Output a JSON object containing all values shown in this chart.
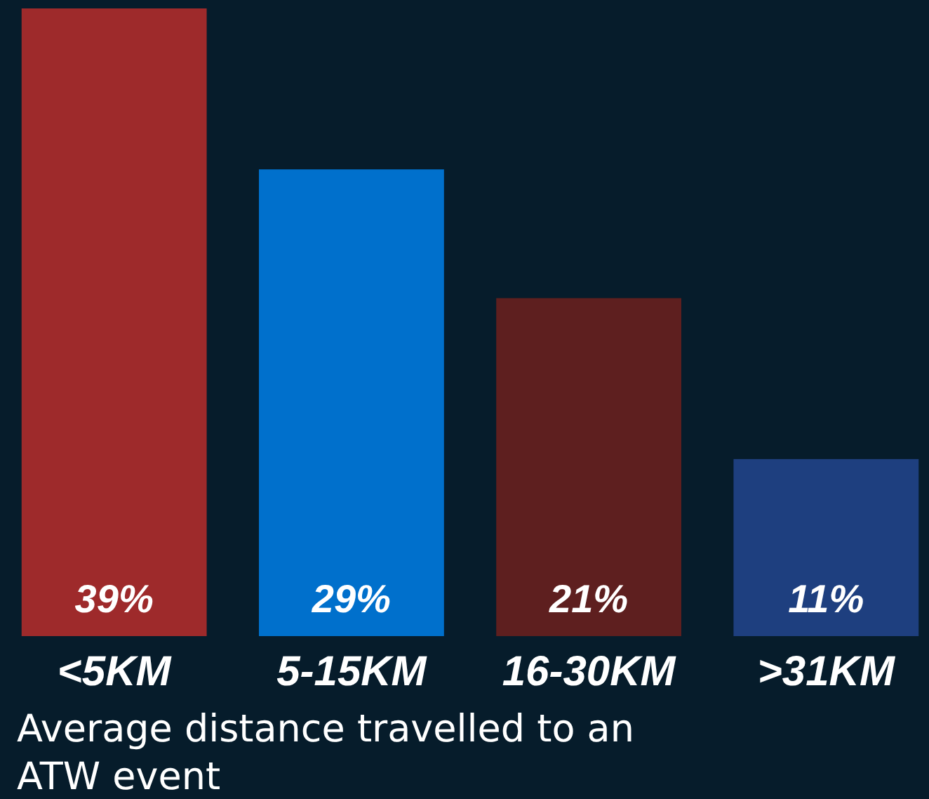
{
  "chart_data": {
    "type": "bar",
    "title": "Average distance travelled to an ATW event",
    "categories": [
      "<5KM",
      "5-15KM",
      "16-30KM",
      ">31KM"
    ],
    "values": [
      39,
      29,
      21,
      11
    ],
    "colors": [
      "#9e2a2b",
      "#0070cc",
      "#5e1f1f",
      "#1e3f7f"
    ],
    "value_labels": [
      "39%",
      "29%",
      "21%",
      "11%"
    ]
  }
}
